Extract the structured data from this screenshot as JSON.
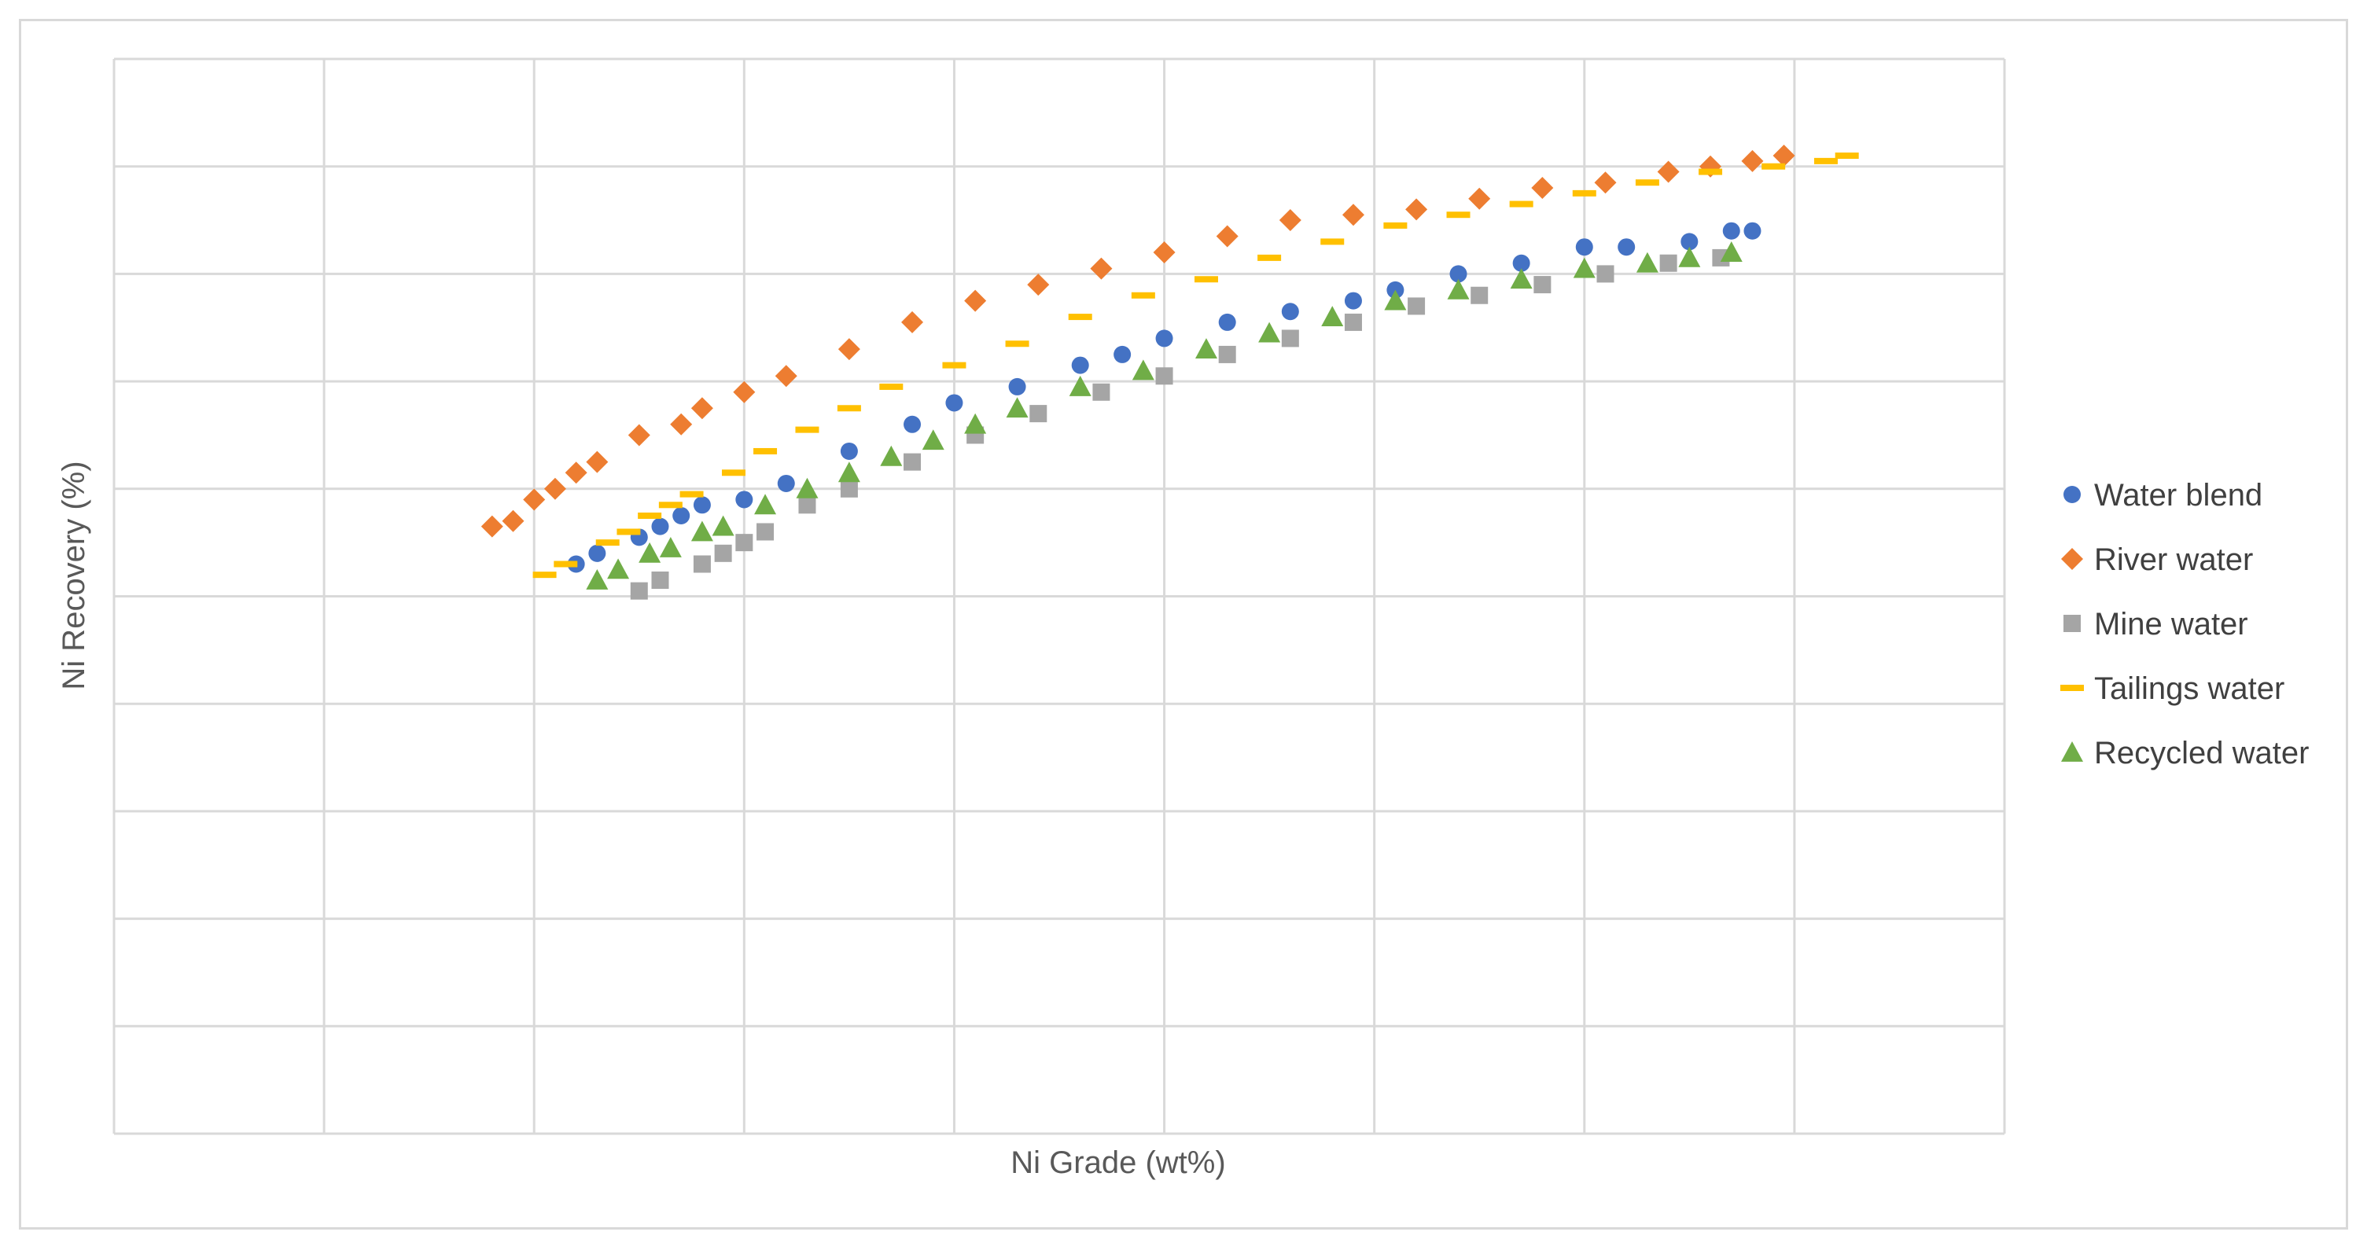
{
  "chart_data": {
    "type": "scatter",
    "title": "",
    "xlabel": "Ni Grade (wt%)",
    "ylabel": "Ni Recovery (%)",
    "xlim": [
      0,
      9
    ],
    "ylim": [
      0,
      10
    ],
    "grid": true,
    "tick_labels_visible": false,
    "legend_position": "right",
    "series": [
      {
        "name": "Water blend",
        "color": "#4472c4",
        "marker": "circle",
        "x": [
          2.2,
          2.3,
          2.5,
          2.6,
          2.7,
          2.8,
          3.0,
          3.2,
          3.5,
          3.8,
          4.0,
          4.3,
          4.6,
          4.8,
          5.0,
          5.3,
          5.6,
          5.9,
          6.1,
          6.4,
          6.7,
          7.0,
          7.2,
          7.5,
          7.7,
          7.8
        ],
        "y": [
          5.3,
          5.4,
          5.55,
          5.65,
          5.75,
          5.85,
          5.9,
          6.05,
          6.35,
          6.6,
          6.8,
          6.95,
          7.15,
          7.25,
          7.4,
          7.55,
          7.65,
          7.75,
          7.85,
          8.0,
          8.1,
          8.25,
          8.25,
          8.3,
          8.4,
          8.4
        ]
      },
      {
        "name": "River water",
        "color": "#ed7d31",
        "marker": "diamond",
        "x": [
          1.8,
          1.9,
          2.0,
          2.1,
          2.2,
          2.3,
          2.5,
          2.7,
          2.8,
          3.0,
          3.2,
          3.5,
          3.8,
          4.1,
          4.4,
          4.7,
          5.0,
          5.3,
          5.6,
          5.9,
          6.2,
          6.5,
          6.8,
          7.1,
          7.4,
          7.6,
          7.8,
          7.95
        ],
        "y": [
          5.65,
          5.7,
          5.9,
          6.0,
          6.15,
          6.25,
          6.5,
          6.6,
          6.75,
          6.9,
          7.05,
          7.3,
          7.55,
          7.75,
          7.9,
          8.05,
          8.2,
          8.35,
          8.5,
          8.55,
          8.6,
          8.7,
          8.8,
          8.85,
          8.95,
          9.0,
          9.05,
          9.1
        ]
      },
      {
        "name": "Mine water",
        "color": "#a5a5a5",
        "marker": "square",
        "x": [
          2.5,
          2.6,
          2.8,
          2.9,
          3.0,
          3.1,
          3.3,
          3.5,
          3.8,
          4.1,
          4.4,
          4.7,
          5.0,
          5.3,
          5.6,
          5.9,
          6.2,
          6.5,
          6.8,
          7.1,
          7.4,
          7.65
        ],
        "y": [
          5.05,
          5.15,
          5.3,
          5.4,
          5.5,
          5.6,
          5.85,
          6.0,
          6.25,
          6.5,
          6.7,
          6.9,
          7.05,
          7.25,
          7.4,
          7.55,
          7.7,
          7.8,
          7.9,
          8.0,
          8.1,
          8.15
        ]
      },
      {
        "name": "Tailings water",
        "color": "#ffc000",
        "marker": "dash",
        "x": [
          2.05,
          2.15,
          2.35,
          2.45,
          2.55,
          2.65,
          2.75,
          2.95,
          3.1,
          3.3,
          3.5,
          3.7,
          4.0,
          4.3,
          4.6,
          4.9,
          5.2,
          5.5,
          5.8,
          6.1,
          6.4,
          6.7,
          7.0,
          7.3,
          7.6,
          7.9,
          8.15,
          8.25
        ],
        "y": [
          5.2,
          5.3,
          5.5,
          5.6,
          5.75,
          5.85,
          5.95,
          6.15,
          6.35,
          6.55,
          6.75,
          6.95,
          7.15,
          7.35,
          7.6,
          7.8,
          7.95,
          8.15,
          8.3,
          8.45,
          8.55,
          8.65,
          8.75,
          8.85,
          8.95,
          9.0,
          9.05,
          9.1
        ]
      },
      {
        "name": "Recycled water",
        "color": "#70ad47",
        "marker": "triangle",
        "x": [
          2.3,
          2.4,
          2.55,
          2.65,
          2.8,
          2.9,
          3.1,
          3.3,
          3.5,
          3.7,
          3.9,
          4.1,
          4.3,
          4.6,
          4.9,
          5.2,
          5.5,
          5.8,
          6.1,
          6.4,
          6.7,
          7.0,
          7.3,
          7.5,
          7.7
        ],
        "y": [
          5.15,
          5.25,
          5.4,
          5.45,
          5.6,
          5.65,
          5.85,
          6.0,
          6.15,
          6.3,
          6.45,
          6.6,
          6.75,
          6.95,
          7.1,
          7.3,
          7.45,
          7.6,
          7.75,
          7.85,
          7.95,
          8.05,
          8.1,
          8.15,
          8.2
        ]
      }
    ]
  }
}
